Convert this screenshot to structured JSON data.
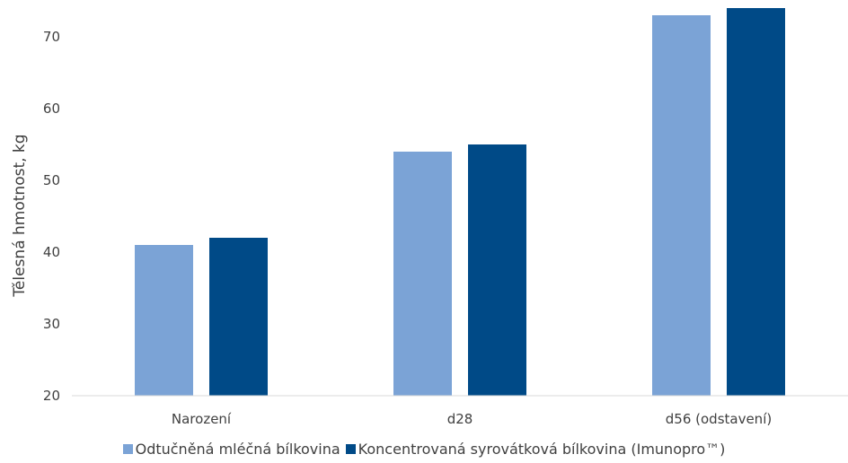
{
  "chart_data": {
    "type": "bar",
    "title": "",
    "xlabel": "",
    "ylabel": "Tělesná hmotnost, kg",
    "categories": [
      "Narození",
      "d28",
      "d56 (odstavení)"
    ],
    "ylim": [
      20,
      75
    ],
    "yticks": [
      20,
      30,
      40,
      50,
      60,
      70
    ],
    "grid": false,
    "legend_position": "bottom",
    "series": [
      {
        "name": "Odtučněná mléčná bílkovina",
        "values": [
          41,
          54,
          73
        ],
        "color": "#7ba3d6"
      },
      {
        "name": "Koncentrovaná syrovátková bílkovina (Imunopro™)",
        "values": [
          42,
          55,
          74
        ],
        "color": "#004a87"
      }
    ]
  }
}
